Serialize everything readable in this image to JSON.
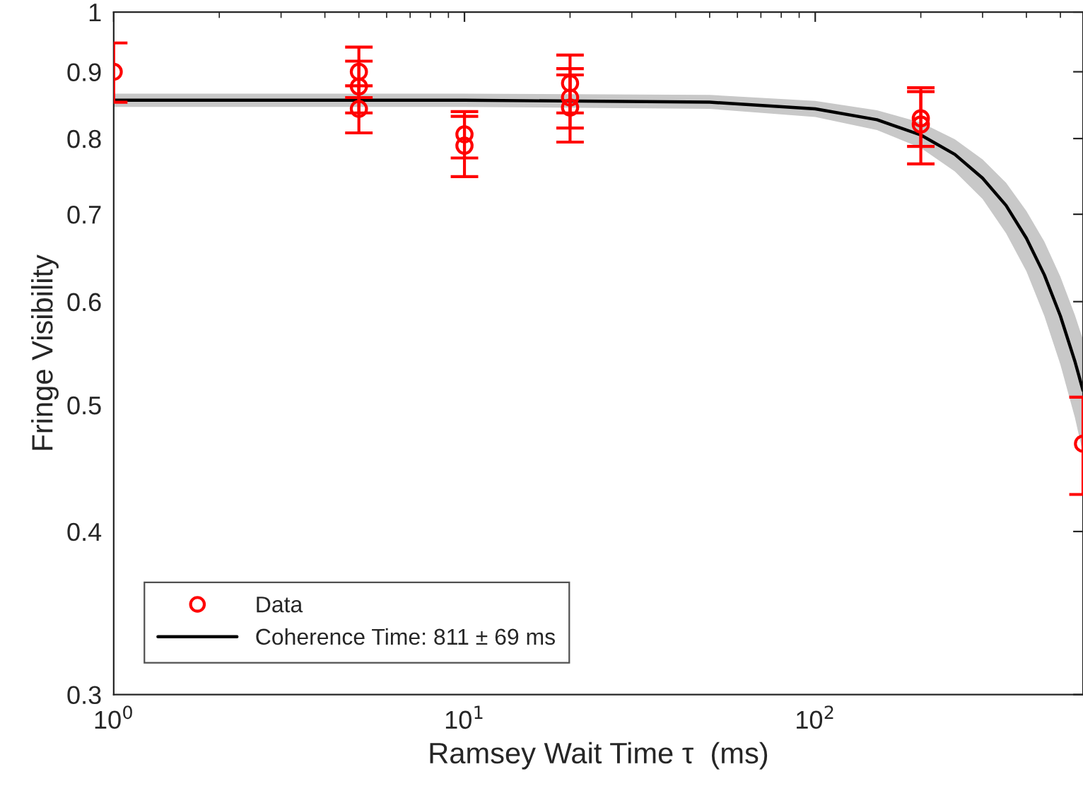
{
  "chart_data": {
    "type": "scatter",
    "xlabel": "Ramsey Wait Time τ  (ms)",
    "ylabel": "Fringe Visibility",
    "log": "xy",
    "xlim": [
      1,
      580
    ],
    "ylim": [
      0.3,
      1
    ],
    "xticks": [
      {
        "value": 1,
        "label": "10$^{0}$"
      },
      {
        "value": 10,
        "label": "10$^{1}$"
      },
      {
        "value": 100,
        "label": "10$^{2}$"
      }
    ],
    "yticks": [
      0.3,
      0.4,
      0.5,
      0.6,
      0.7,
      0.8,
      0.9,
      1
    ],
    "legend": "bottom left",
    "grid": false,
    "series": [
      {
        "name": "Data",
        "marker": "circle",
        "color": "#ff0000",
        "x": [
          1,
          5,
          5,
          5,
          10,
          10,
          20,
          20,
          20,
          200,
          200,
          580
        ],
        "values": [
          0.9,
          0.9,
          0.877,
          0.843,
          0.806,
          0.79,
          0.882,
          0.86,
          0.845,
          0.829,
          0.82,
          0.467
        ],
        "errors": [
          0.047,
          0.04,
          0.04,
          0.035,
          0.033,
          0.042,
          0.045,
          0.045,
          0.05,
          0.04,
          0.055,
          0.04
        ]
      },
      {
        "name": "Coherence Time: 811 ± 69 ms",
        "type": "line",
        "color": "#000000",
        "x": [
          1,
          10,
          50,
          100,
          150,
          200,
          250,
          300,
          350,
          400,
          450,
          500,
          550,
          580
        ],
        "values": [
          0.856,
          0.856,
          0.853,
          0.843,
          0.827,
          0.805,
          0.778,
          0.746,
          0.711,
          0.671,
          0.629,
          0.585,
          0.54,
          0.513
        ],
        "lower": [
          0.846,
          0.846,
          0.843,
          0.831,
          0.812,
          0.787,
          0.755,
          0.719,
          0.677,
          0.633,
          0.585,
          0.537,
          0.489,
          0.459
        ],
        "upper": [
          0.866,
          0.866,
          0.864,
          0.855,
          0.841,
          0.823,
          0.799,
          0.771,
          0.74,
          0.704,
          0.667,
          0.627,
          0.586,
          0.561
        ]
      }
    ]
  }
}
